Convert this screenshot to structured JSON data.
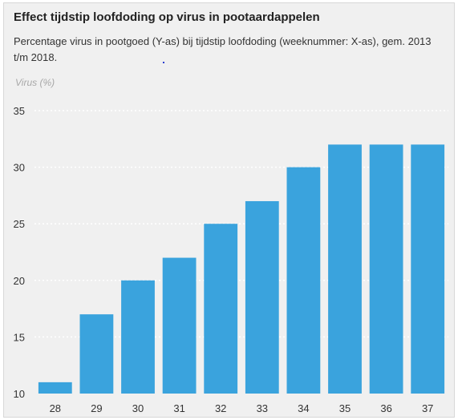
{
  "chart_data": {
    "type": "bar",
    "title": "Effect tijdstip loofdoding op virus in pootaardappelen",
    "subtitle": "Percentage virus in pootgoed (Y-as) bij tijdstip loofdoding (weeknummer: X-as), gem. 2013 t/m 2018.",
    "ylabel": "Virus (%)",
    "xlabel": "",
    "categories": [
      "28",
      "29",
      "30",
      "31",
      "32",
      "33",
      "34",
      "35",
      "36",
      "37"
    ],
    "values": [
      11,
      17,
      20,
      22,
      25,
      27,
      30,
      32,
      32,
      32
    ],
    "ylim": [
      10,
      35
    ],
    "yticks": [
      10,
      15,
      20,
      25,
      30,
      35
    ],
    "grid": true,
    "bar_color": "#3aa3dd",
    "grid_color": "#ffffff"
  }
}
